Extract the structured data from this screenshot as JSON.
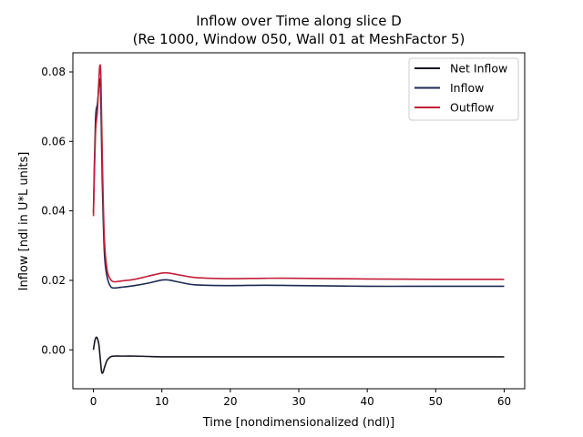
{
  "chart_data": {
    "type": "line",
    "title": "Inflow over Time along slice D",
    "subtitle": "(Re 1000, Window 050, Wall 01 at MeshFactor 5)",
    "xlabel": "Time [nondimensionalized (ndl)]",
    "ylabel": "Inflow [ndl in U*L units]",
    "xlim": [
      -3,
      63
    ],
    "ylim": [
      -0.0112,
      0.0855
    ],
    "xticks": [
      0,
      10,
      20,
      30,
      40,
      50,
      60
    ],
    "yticks": [
      0.0,
      0.02,
      0.04,
      0.06,
      0.08
    ],
    "xtick_labels": [
      "0",
      "10",
      "20",
      "30",
      "40",
      "50",
      "60"
    ],
    "ytick_labels": [
      "0.00",
      "0.02",
      "0.04",
      "0.06",
      "0.08"
    ],
    "grid": false,
    "legend_position": "top-right",
    "series": [
      {
        "name": "Net Inflow",
        "color": "#17171f",
        "x": [
          0,
          0.2,
          0.4,
          0.6,
          0.8,
          1.0,
          1.2,
          1.4,
          1.6,
          2.0,
          2.5,
          3,
          4,
          6,
          8,
          10,
          15,
          20,
          30,
          40,
          50,
          60
        ],
        "y": [
          0.0,
          0.0025,
          0.0036,
          0.0032,
          0.0015,
          -0.0025,
          -0.0063,
          -0.0065,
          -0.0052,
          -0.003,
          -0.002,
          -0.0018,
          -0.0018,
          -0.0018,
          -0.0019,
          -0.002,
          -0.002,
          -0.002,
          -0.002,
          -0.002,
          -0.002,
          -0.002
        ]
      },
      {
        "name": "Inflow",
        "color": "#1c2a50",
        "x": [
          0,
          0.3,
          0.6,
          0.9,
          1.1,
          1.3,
          1.6,
          2.0,
          2.5,
          3,
          4,
          6,
          8,
          10,
          11,
          13,
          15,
          20,
          25,
          30,
          40,
          50,
          60
        ],
        "y": [
          0.0395,
          0.066,
          0.071,
          0.078,
          0.07,
          0.048,
          0.028,
          0.021,
          0.0183,
          0.0178,
          0.018,
          0.0185,
          0.0192,
          0.0201,
          0.0201,
          0.0193,
          0.0187,
          0.0185,
          0.0186,
          0.0185,
          0.0183,
          0.0183,
          0.0183
        ]
      },
      {
        "name": "Outflow",
        "color": "#c41e3a",
        "x": [
          0,
          0.3,
          0.6,
          0.9,
          1.1,
          1.3,
          1.6,
          2.0,
          2.5,
          3,
          4,
          6,
          8,
          10,
          11,
          13,
          15,
          20,
          25,
          30,
          40,
          50,
          60
        ],
        "y": [
          0.0385,
          0.062,
          0.069,
          0.0812,
          0.078,
          0.055,
          0.032,
          0.023,
          0.0203,
          0.0196,
          0.0198,
          0.0203,
          0.0212,
          0.0221,
          0.0221,
          0.0214,
          0.0208,
          0.0205,
          0.0206,
          0.0206,
          0.0204,
          0.0203,
          0.0203
        ]
      }
    ]
  }
}
